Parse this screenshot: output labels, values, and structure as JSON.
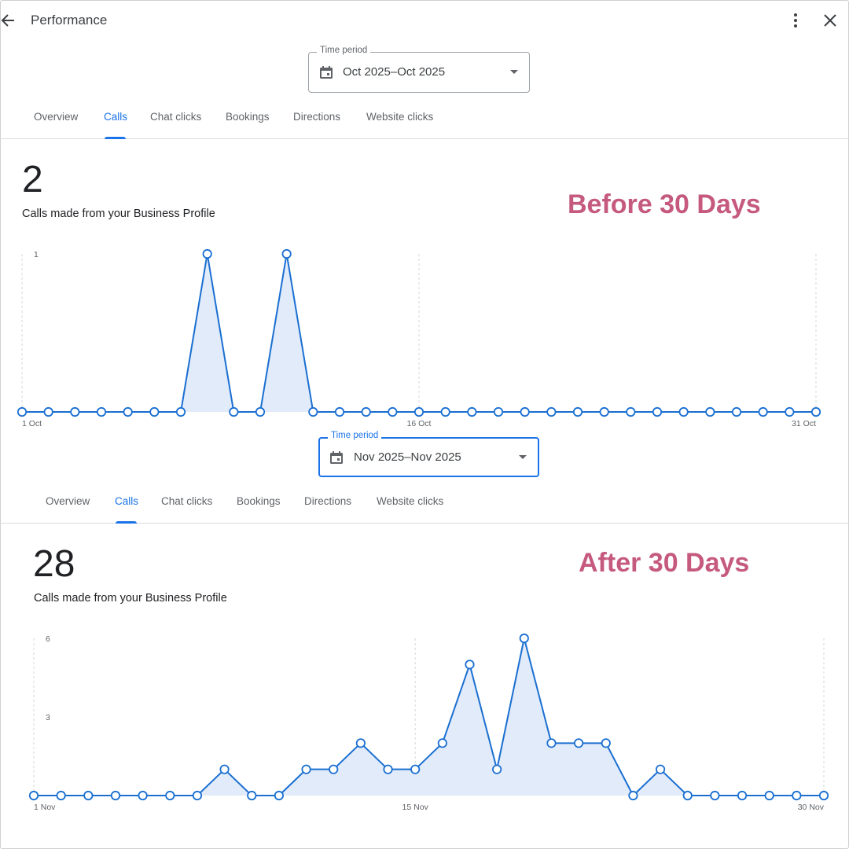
{
  "header": {
    "title": "Performance",
    "back_icon": "arrow-back-icon",
    "more_icon": "more-vert-icon",
    "close_icon": "close-icon"
  },
  "colors": {
    "accent": "#1a73e8",
    "line": "#1a6fd1",
    "area": "#e2ebfa",
    "annotation": "#c55a7e"
  },
  "section1": {
    "time_period": {
      "label": "Time period",
      "value": "Oct 2025–Oct 2025"
    },
    "tabs": [
      {
        "label": "Overview",
        "active": false
      },
      {
        "label": "Calls",
        "active": true
      },
      {
        "label": "Chat clicks",
        "active": false
      },
      {
        "label": "Bookings",
        "active": false
      },
      {
        "label": "Directions",
        "active": false
      },
      {
        "label": "Website clicks",
        "active": false
      }
    ],
    "metric_value": "2",
    "metric_caption": "Calls made from your Business Profile",
    "annotation": "Before 30 Days"
  },
  "section2": {
    "time_period": {
      "label": "Time period",
      "value": "Nov 2025–Nov 2025"
    },
    "tabs": [
      {
        "label": "Overview",
        "active": false
      },
      {
        "label": "Calls",
        "active": true
      },
      {
        "label": "Chat clicks",
        "active": false
      },
      {
        "label": "Bookings",
        "active": false
      },
      {
        "label": "Directions",
        "active": false
      },
      {
        "label": "Website clicks",
        "active": false
      }
    ],
    "metric_value": "28",
    "metric_caption": "Calls made from your Business Profile",
    "annotation": "After 30 Days"
  },
  "chart_data": [
    {
      "type": "area",
      "x_tick_labels": [
        "1 Oct",
        "16 Oct",
        "31 Oct"
      ],
      "x_tick_positions": [
        1,
        16,
        31
      ],
      "y_tick_labels": [
        "1"
      ],
      "y_tick_values": [
        1
      ],
      "ylim": [
        0,
        1
      ],
      "x": [
        1,
        2,
        3,
        4,
        5,
        6,
        7,
        8,
        9,
        10,
        11,
        12,
        13,
        14,
        15,
        16,
        17,
        18,
        19,
        20,
        21,
        22,
        23,
        24,
        25,
        26,
        27,
        28,
        29,
        30,
        31
      ],
      "values": [
        0,
        0,
        0,
        0,
        0,
        0,
        0,
        1,
        0,
        0,
        1,
        0,
        0,
        0,
        0,
        0,
        0,
        0,
        0,
        0,
        0,
        0,
        0,
        0,
        0,
        0,
        0,
        0,
        0,
        0,
        0
      ],
      "grid": "dashed vertical at ticks"
    },
    {
      "type": "area",
      "x_tick_labels": [
        "1 Nov",
        "15 Nov",
        "30 Nov"
      ],
      "x_tick_positions": [
        1,
        15,
        30
      ],
      "y_tick_labels": [
        "6",
        "3"
      ],
      "y_tick_values": [
        6,
        3
      ],
      "ylim": [
        0,
        6
      ],
      "x": [
        1,
        2,
        3,
        4,
        5,
        6,
        7,
        8,
        9,
        10,
        11,
        12,
        13,
        14,
        15,
        16,
        17,
        18,
        19,
        20,
        21,
        22,
        23,
        24,
        25,
        26,
        27,
        28,
        29,
        30
      ],
      "values": [
        0,
        0,
        0,
        0,
        0,
        0,
        0,
        1,
        0,
        0,
        1,
        1,
        2,
        1,
        1,
        2,
        5,
        1,
        6,
        2,
        2,
        2,
        0,
        1,
        0,
        0,
        0,
        0,
        0,
        0
      ],
      "grid": "dashed vertical at ticks"
    }
  ]
}
